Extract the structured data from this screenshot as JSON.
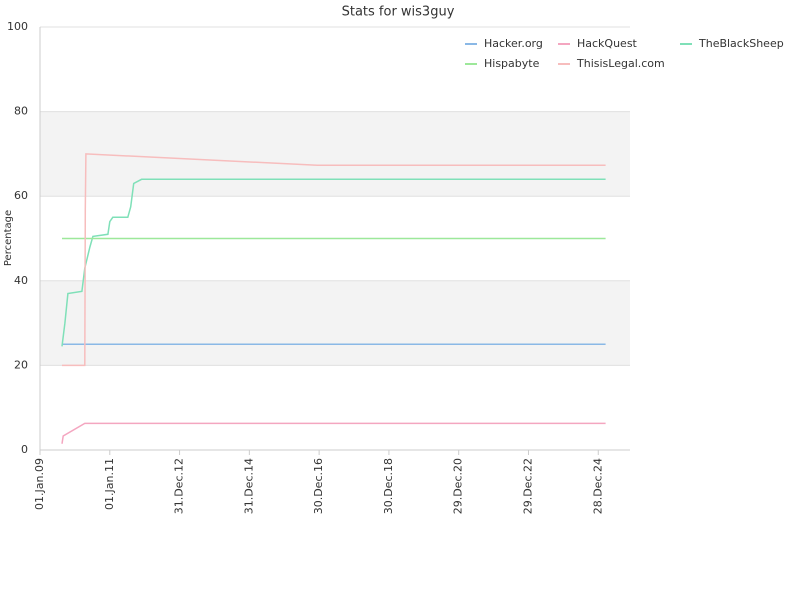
{
  "chart_data": {
    "type": "line",
    "title": "Stats for wis3guy",
    "y_label": "Percentage",
    "xlim": [
      "2009-01-01",
      "2025-11-25"
    ],
    "xticks": [
      {
        "value": "2009-01-01",
        "label": "01.Jan.09"
      },
      {
        "value": "2011-01-01",
        "label": "01.Jan.11"
      },
      {
        "value": "2012-12-31",
        "label": "31.Dec.12"
      },
      {
        "value": "2014-12-31",
        "label": "31.Dec.14"
      },
      {
        "value": "2016-12-30",
        "label": "30.Dec.16"
      },
      {
        "value": "2018-12-30",
        "label": "30.Dec.18"
      },
      {
        "value": "2020-12-29",
        "label": "29.Dec.20"
      },
      {
        "value": "2022-12-29",
        "label": "29.Dec.22"
      },
      {
        "value": "2024-12-28",
        "label": "28.Dec.24"
      }
    ],
    "ylim": [
      0,
      100
    ],
    "yticks": [
      0,
      20,
      40,
      60,
      80,
      100
    ],
    "grid": true,
    "alternate_grid_color": "#f3f3f3",
    "legend": "top-right",
    "series": [
      {
        "name": "Hacker.org",
        "color": "#8ab8e6",
        "x": [
          "2009-08-19",
          "2025-03-15"
        ],
        "values": [
          25,
          25
        ]
      },
      {
        "name": "HackQuest",
        "color": "#f4a6c0",
        "x": [
          "2009-08-19",
          "2009-09-01",
          "2010-04-15",
          "2025-03-15"
        ],
        "values": [
          1.5,
          3.3,
          6.3,
          6.3
        ]
      },
      {
        "name": "TheBlackSheep",
        "color": "#7fe0b8",
        "x": [
          "2009-08-19",
          "2009-09-19",
          "2009-10-20",
          "2010-03-15",
          "2010-04-15",
          "2010-06-07",
          "2010-07-08",
          "2010-12-12",
          "2011-01-01",
          "2011-02-02",
          "2011-07-08",
          "2011-08-08",
          "2011-09-08",
          "2011-11-30",
          "2025-03-15"
        ],
        "values": [
          24.5,
          30,
          37,
          37.5,
          43,
          48,
          50.5,
          51,
          54,
          55,
          55,
          57.5,
          63,
          64,
          64
        ]
      },
      {
        "name": "Hispabyte",
        "color": "#9de89a",
        "x": [
          "2009-08-19",
          "2025-03-15"
        ],
        "values": [
          50,
          50
        ]
      },
      {
        "name": "ThisisLegal.com",
        "color": "#f7bdbd",
        "x": [
          "2009-08-19",
          "2010-04-15",
          "2010-04-20",
          "2010-04-26",
          "2016-12-10",
          "2025-03-15"
        ],
        "values": [
          20,
          20,
          57,
          70,
          67.3,
          67.3
        ]
      }
    ]
  }
}
